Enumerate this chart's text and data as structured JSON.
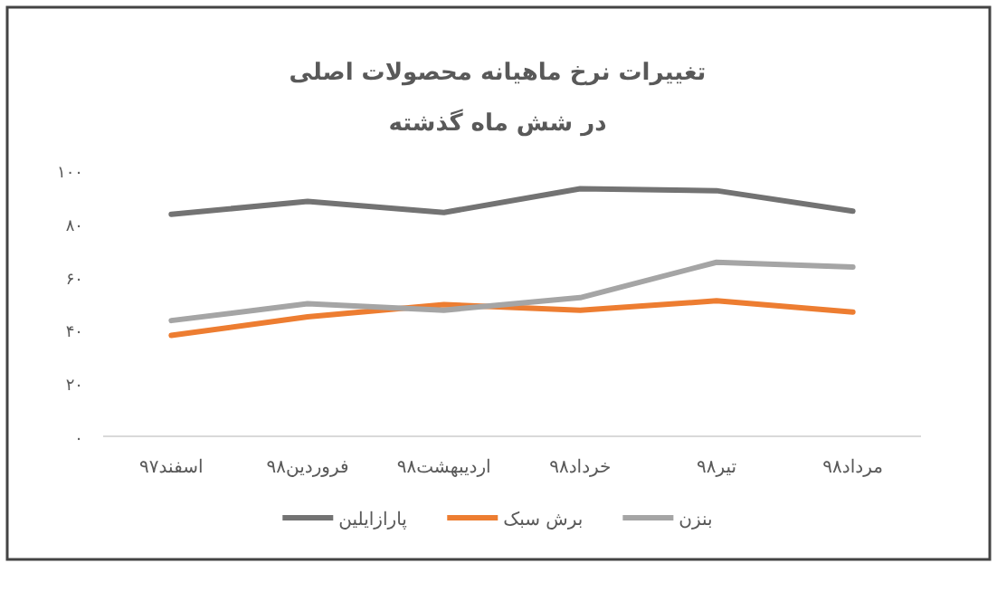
{
  "chart_data": {
    "type": "line",
    "title": "تغییرات نرخ ماهیانه محصولات اصلی",
    "subtitle": "در شش ماه گذشته",
    "categories": [
      "اسفند۹۷",
      "فروردین۹۸",
      "اردیبهشت۹۸",
      "خرداد۹۸",
      "تیر۹۸",
      "مرداد۹۸"
    ],
    "series": [
      {
        "name": "پارازایلین",
        "color": "#737373",
        "values": [
          83.4,
          88.3,
          84.1,
          93,
          92.3,
          84.6
        ]
      },
      {
        "name": "برش سبک",
        "color": "#ed7d31",
        "values": [
          37.9,
          44.9,
          49.5,
          47.4,
          50.9,
          46.7
        ]
      },
      {
        "name": "بنزن",
        "color": "#a5a5a5",
        "values": [
          43.5,
          49.8,
          47.4,
          52.1,
          65.4,
          63.6
        ]
      }
    ],
    "ylim": [
      0,
      100
    ],
    "yticks": [
      {
        "value": 0,
        "label": "۰"
      },
      {
        "value": 20,
        "label": "۲۰"
      },
      {
        "value": 40,
        "label": "۴۰"
      },
      {
        "value": 60,
        "label": "۶۰"
      },
      {
        "value": 80,
        "label": "۸۰"
      },
      {
        "value": 100,
        "label": "۱۰۰"
      }
    ],
    "legend": "bottom"
  }
}
